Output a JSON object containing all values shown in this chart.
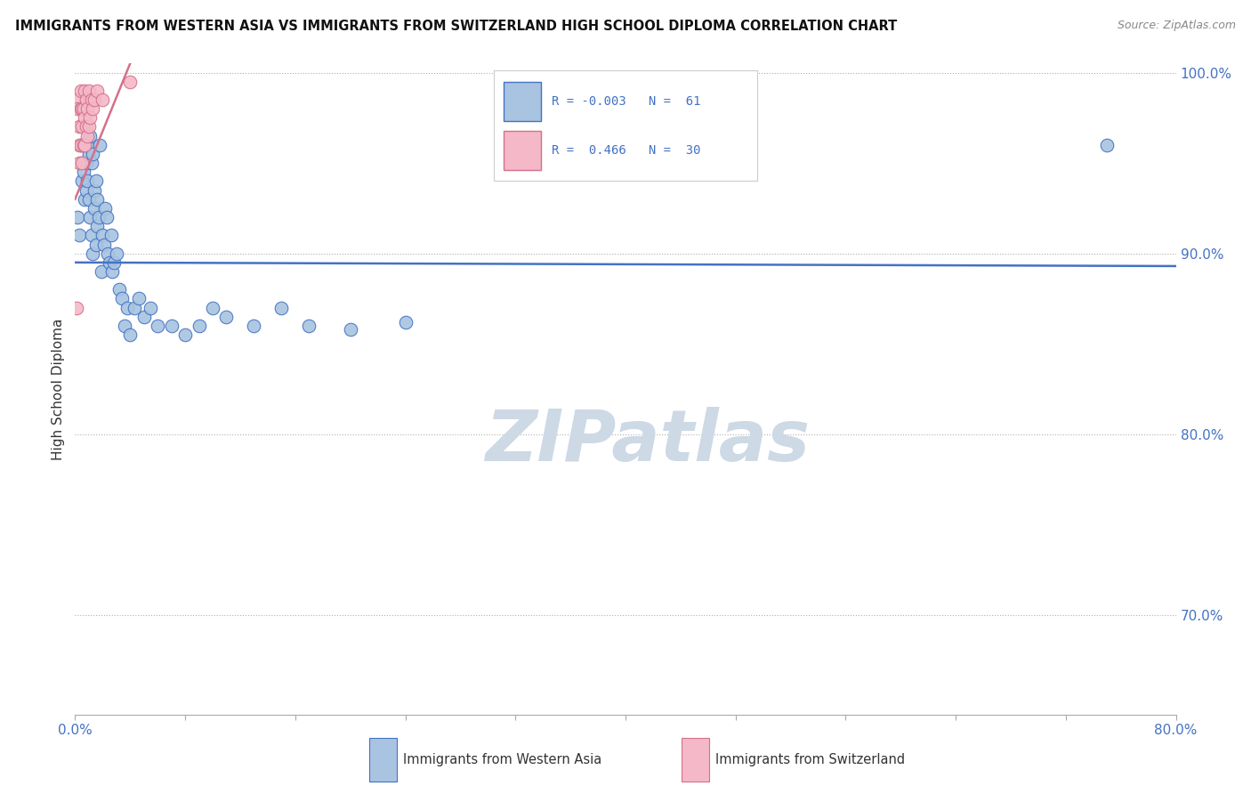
{
  "title": "IMMIGRANTS FROM WESTERN ASIA VS IMMIGRANTS FROM SWITZERLAND HIGH SCHOOL DIPLOMA CORRELATION CHART",
  "source": "Source: ZipAtlas.com",
  "ylabel": "High School Diploma",
  "xlim": [
    0.0,
    0.8
  ],
  "ylim": [
    0.645,
    1.005
  ],
  "ytick_positions": [
    0.7,
    0.8,
    0.9,
    1.0
  ],
  "ytick_labels": [
    "70.0%",
    "80.0%",
    "90.0%",
    "100.0%"
  ],
  "blue_color": "#a8c4e0",
  "blue_line_color": "#4472c4",
  "pink_color": "#f4b8c8",
  "pink_line_color": "#d4708a",
  "legend_blue_R": "-0.003",
  "legend_blue_N": "61",
  "legend_pink_R": "0.466",
  "legend_pink_N": "30",
  "watermark": "ZIPatlas",
  "watermark_color": "#cdd9e5",
  "blue_scatter_x": [
    0.002,
    0.003,
    0.004,
    0.005,
    0.005,
    0.006,
    0.006,
    0.007,
    0.007,
    0.008,
    0.008,
    0.009,
    0.009,
    0.01,
    0.01,
    0.011,
    0.011,
    0.012,
    0.012,
    0.013,
    0.013,
    0.014,
    0.014,
    0.015,
    0.015,
    0.016,
    0.016,
    0.017,
    0.018,
    0.019,
    0.02,
    0.021,
    0.022,
    0.023,
    0.024,
    0.025,
    0.026,
    0.027,
    0.028,
    0.03,
    0.032,
    0.034,
    0.036,
    0.038,
    0.04,
    0.043,
    0.046,
    0.05,
    0.055,
    0.06,
    0.07,
    0.08,
    0.09,
    0.1,
    0.11,
    0.13,
    0.15,
    0.17,
    0.2,
    0.24,
    0.75
  ],
  "blue_scatter_y": [
    0.92,
    0.91,
    0.96,
    0.95,
    0.94,
    0.97,
    0.945,
    0.96,
    0.93,
    0.95,
    0.935,
    0.96,
    0.94,
    0.955,
    0.93,
    0.965,
    0.92,
    0.95,
    0.91,
    0.955,
    0.9,
    0.935,
    0.925,
    0.94,
    0.905,
    0.93,
    0.915,
    0.92,
    0.96,
    0.89,
    0.91,
    0.905,
    0.925,
    0.92,
    0.9,
    0.895,
    0.91,
    0.89,
    0.895,
    0.9,
    0.88,
    0.875,
    0.86,
    0.87,
    0.855,
    0.87,
    0.875,
    0.865,
    0.87,
    0.86,
    0.86,
    0.855,
    0.86,
    0.87,
    0.865,
    0.86,
    0.87,
    0.86,
    0.858,
    0.862,
    0.96
  ],
  "pink_scatter_x": [
    0.001,
    0.002,
    0.002,
    0.003,
    0.003,
    0.003,
    0.004,
    0.004,
    0.004,
    0.005,
    0.005,
    0.005,
    0.006,
    0.006,
    0.007,
    0.007,
    0.007,
    0.008,
    0.008,
    0.009,
    0.009,
    0.01,
    0.01,
    0.011,
    0.012,
    0.013,
    0.014,
    0.016,
    0.02,
    0.04
  ],
  "pink_scatter_y": [
    0.87,
    0.985,
    0.98,
    0.97,
    0.96,
    0.95,
    0.99,
    0.98,
    0.96,
    0.98,
    0.97,
    0.95,
    0.98,
    0.96,
    0.99,
    0.975,
    0.96,
    0.985,
    0.97,
    0.98,
    0.965,
    0.99,
    0.97,
    0.975,
    0.985,
    0.98,
    0.985,
    0.99,
    0.985,
    0.995
  ],
  "blue_trend_x": [
    0.0,
    0.8
  ],
  "blue_trend_y": [
    0.895,
    0.893
  ],
  "pink_trend_x": [
    0.0,
    0.04
  ],
  "pink_trend_y": [
    0.93,
    1.005
  ]
}
